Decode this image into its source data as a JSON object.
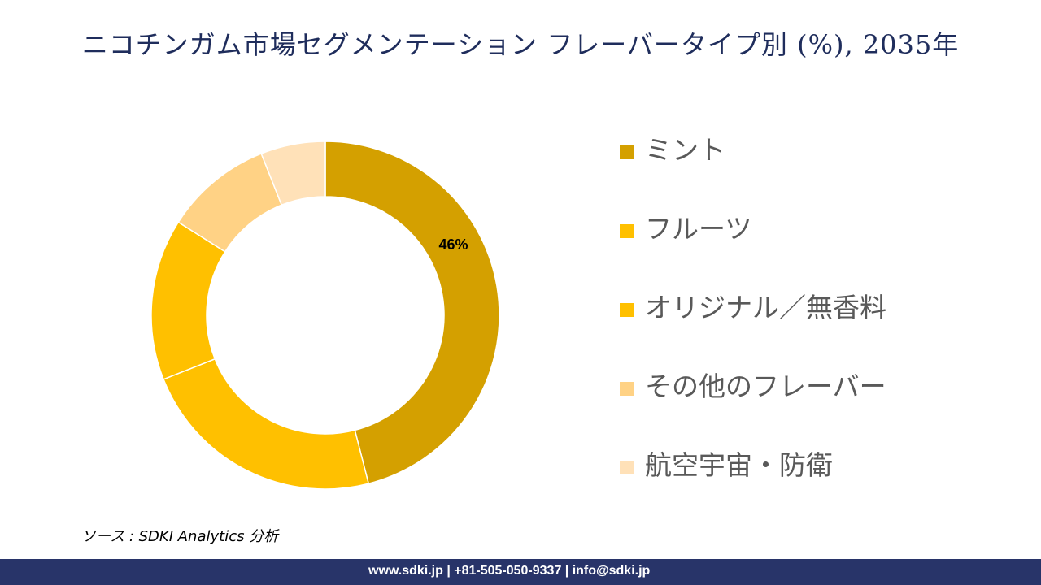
{
  "chart_data": {
    "type": "pie",
    "donut": true,
    "title": "ニコチンガム市場セグメンテーション フレーバータイプ別 (%), 2035年",
    "categories": [
      "ミント",
      "フルーツ",
      "オリジナル／無香料",
      "その他のフレーバー",
      "航空宇宙・防衛"
    ],
    "values": [
      46,
      23,
      15,
      10,
      6
    ],
    "data_labels": {
      "0": "46%"
    },
    "colors": [
      "#d4a000",
      "#ffc000",
      "#ffc000",
      "#ffd285",
      "#ffe1b8"
    ],
    "legend": "right"
  },
  "source": "ソース : SDKI Analytics 分析",
  "footer": "www.sdki.jp | +81-505-050-9337 | info@sdki.jp"
}
